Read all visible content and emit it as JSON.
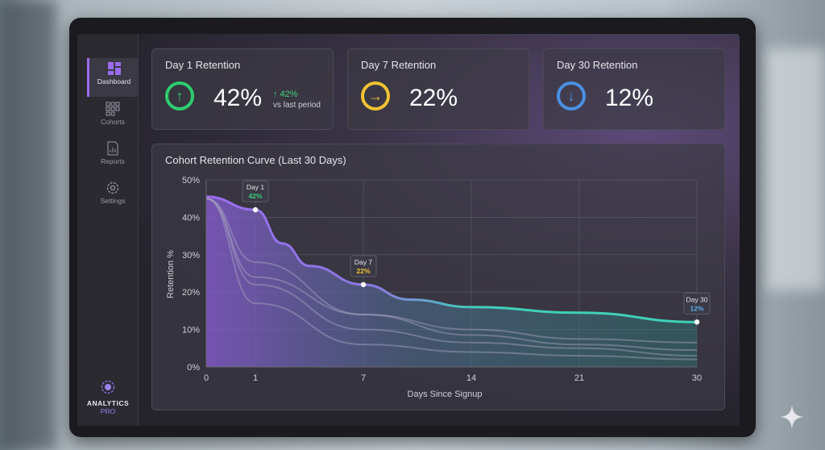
{
  "sidebar": {
    "items": [
      {
        "label": "Dashboard",
        "icon": "dashboard-icon",
        "active": true
      },
      {
        "label": "Cohorts",
        "icon": "grid-icon"
      },
      {
        "label": "Reports",
        "icon": "report-icon"
      },
      {
        "label": "Settings",
        "icon": "gear-icon"
      }
    ],
    "brand": {
      "line1": "ANALYTICS",
      "line2": "PRO"
    }
  },
  "kpis": [
    {
      "title": "Day 1 Retention",
      "value": "42%",
      "icon": "arrow-up-icon",
      "color": "#2ecc71",
      "delta": "↑ 42%",
      "delta_note": "vs last period"
    },
    {
      "title": "Day 7 Retention",
      "value": "22%",
      "icon": "arrow-right-icon",
      "color": "#f1c232"
    },
    {
      "title": "Day 30 Retention",
      "value": "12%",
      "icon": "arrow-down-icon",
      "color": "#4a90e2"
    }
  ],
  "chart_data": {
    "type": "line",
    "title": "Cohort Retention Curve (Last 30 Days)",
    "xlabel": "Days Since Signup",
    "ylabel": "Retention %",
    "xticks": [
      0,
      1,
      7,
      14,
      21,
      30
    ],
    "yticks": [
      "0%",
      "10%",
      "20%",
      "30%",
      "40%",
      "50%"
    ],
    "ylim": [
      0,
      50
    ],
    "grid": true,
    "main_series": {
      "color": "#3fd0b8",
      "x": [
        0,
        1,
        2.5,
        4,
        7,
        10,
        14,
        21,
        30
      ],
      "values": [
        45.5,
        42,
        33,
        27,
        22,
        18,
        16,
        14.5,
        12
      ]
    },
    "cohort_series": [
      {
        "x": [
          0,
          1,
          7,
          14,
          21,
          30
        ],
        "values": [
          45,
          28,
          14,
          10,
          7.5,
          6.5
        ]
      },
      {
        "x": [
          0,
          1,
          7,
          14,
          21,
          30
        ],
        "values": [
          45,
          24,
          14,
          8.5,
          6,
          4.5
        ]
      },
      {
        "x": [
          0,
          1,
          7,
          14,
          21,
          30
        ],
        "values": [
          45,
          22,
          10,
          6.5,
          5,
          3
        ]
      },
      {
        "x": [
          0,
          1,
          7,
          14,
          21,
          30
        ],
        "values": [
          45,
          17,
          6,
          4,
          3,
          2
        ]
      }
    ],
    "annotations": [
      {
        "x": 1,
        "y": 42,
        "label": "Day 1",
        "value": "42%",
        "color": "#3ecf7a"
      },
      {
        "x": 7,
        "y": 22,
        "label": "Day 7",
        "value": "22%",
        "color": "#f1c232"
      },
      {
        "x": 30,
        "y": 12,
        "label": "Day 30",
        "value": "12%",
        "color": "#5ab0f0"
      }
    ]
  }
}
